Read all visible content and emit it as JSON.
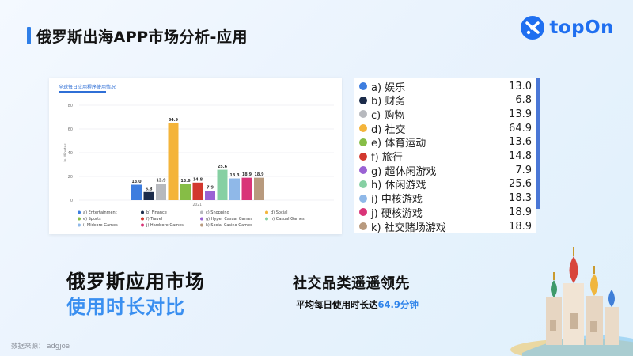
{
  "header": {
    "title": "俄罗斯出海APP市场分析-应用"
  },
  "brand": {
    "name": "topOn"
  },
  "chart_card": {
    "title": "全球每日应用程序使用情况"
  },
  "chart_data": {
    "type": "bar",
    "title": "全球每日应用程序使用情况",
    "ylabel": "In Minutes",
    "ylim": [
      0,
      80
    ],
    "yticks": [
      0,
      20,
      40,
      60,
      80
    ],
    "categories": [
      "2021"
    ],
    "legend_position": "bottom",
    "series": [
      {
        "name": "a) Entertainment",
        "values": [
          13.0
        ],
        "color": "#3d7ddf"
      },
      {
        "name": "b) Finance",
        "values": [
          6.8
        ],
        "color": "#1b2b4a"
      },
      {
        "name": "c) Shopping",
        "values": [
          13.9
        ],
        "color": "#b7b9be"
      },
      {
        "name": "d) Social",
        "values": [
          64.9
        ],
        "color": "#f4b43a"
      },
      {
        "name": "e) Sports",
        "values": [
          13.6
        ],
        "color": "#86bd46"
      },
      {
        "name": "f) Travel",
        "values": [
          14.8
        ],
        "color": "#d2382e"
      },
      {
        "name": "g) Hyper Casual Games",
        "values": [
          7.9
        ],
        "color": "#9a62d4"
      },
      {
        "name": "h) Casual Games",
        "values": [
          25.6
        ],
        "color": "#86d0a3"
      },
      {
        "name": "i) Midcore Games",
        "values": [
          18.3
        ],
        "color": "#8fb8e8"
      },
      {
        "name": "j) Hardcore Games",
        "values": [
          18.9
        ],
        "color": "#d93478"
      },
      {
        "name": "k) Social Casino Games",
        "values": [
          18.9
        ],
        "color": "#b89a7e"
      }
    ],
    "value_labels": [
      "13.0",
      "6.8",
      "13.9",
      "64.9",
      "13.6",
      "14.8",
      "7.9",
      "25.6",
      "18.3",
      "18.9",
      "18.9"
    ]
  },
  "legend_cn": [
    {
      "label": "a) 娱乐",
      "value": "13.0",
      "color": "#3d7ddf"
    },
    {
      "label": "b) 财务",
      "value": "6.8",
      "color": "#1b2b4a"
    },
    {
      "label": "c) 购物",
      "value": "13.9",
      "color": "#b7b9be"
    },
    {
      "label": "d) 社交",
      "value": "64.9",
      "color": "#f4b43a"
    },
    {
      "label": "e) 体育运动",
      "value": "13.6",
      "color": "#86bd46"
    },
    {
      "label": "f) 旅行",
      "value": "14.8",
      "color": "#d2382e"
    },
    {
      "label": "g) 超休闲游戏",
      "value": "7.9",
      "color": "#9a62d4"
    },
    {
      "label": "h) 休闲游戏",
      "value": "25.6",
      "color": "#86d0a3"
    },
    {
      "label": "i) 中核游戏",
      "value": "18.3",
      "color": "#8fb8e8"
    },
    {
      "label": "j) 硬核游戏",
      "value": "18.9",
      "color": "#d93478"
    },
    {
      "label": "k) 社交赌场游戏",
      "value": "18.9",
      "color": "#b89a7e"
    }
  ],
  "summary": {
    "left_line1": "俄罗斯应用市场",
    "left_line2": "使用时长对比",
    "right_heading": "社交品类遥遥领先",
    "right_sub_prefix": "平均每日使用时长达",
    "right_sub_highlight": "64.9分钟"
  },
  "footer": {
    "source": "数据来源： adgjoe"
  }
}
